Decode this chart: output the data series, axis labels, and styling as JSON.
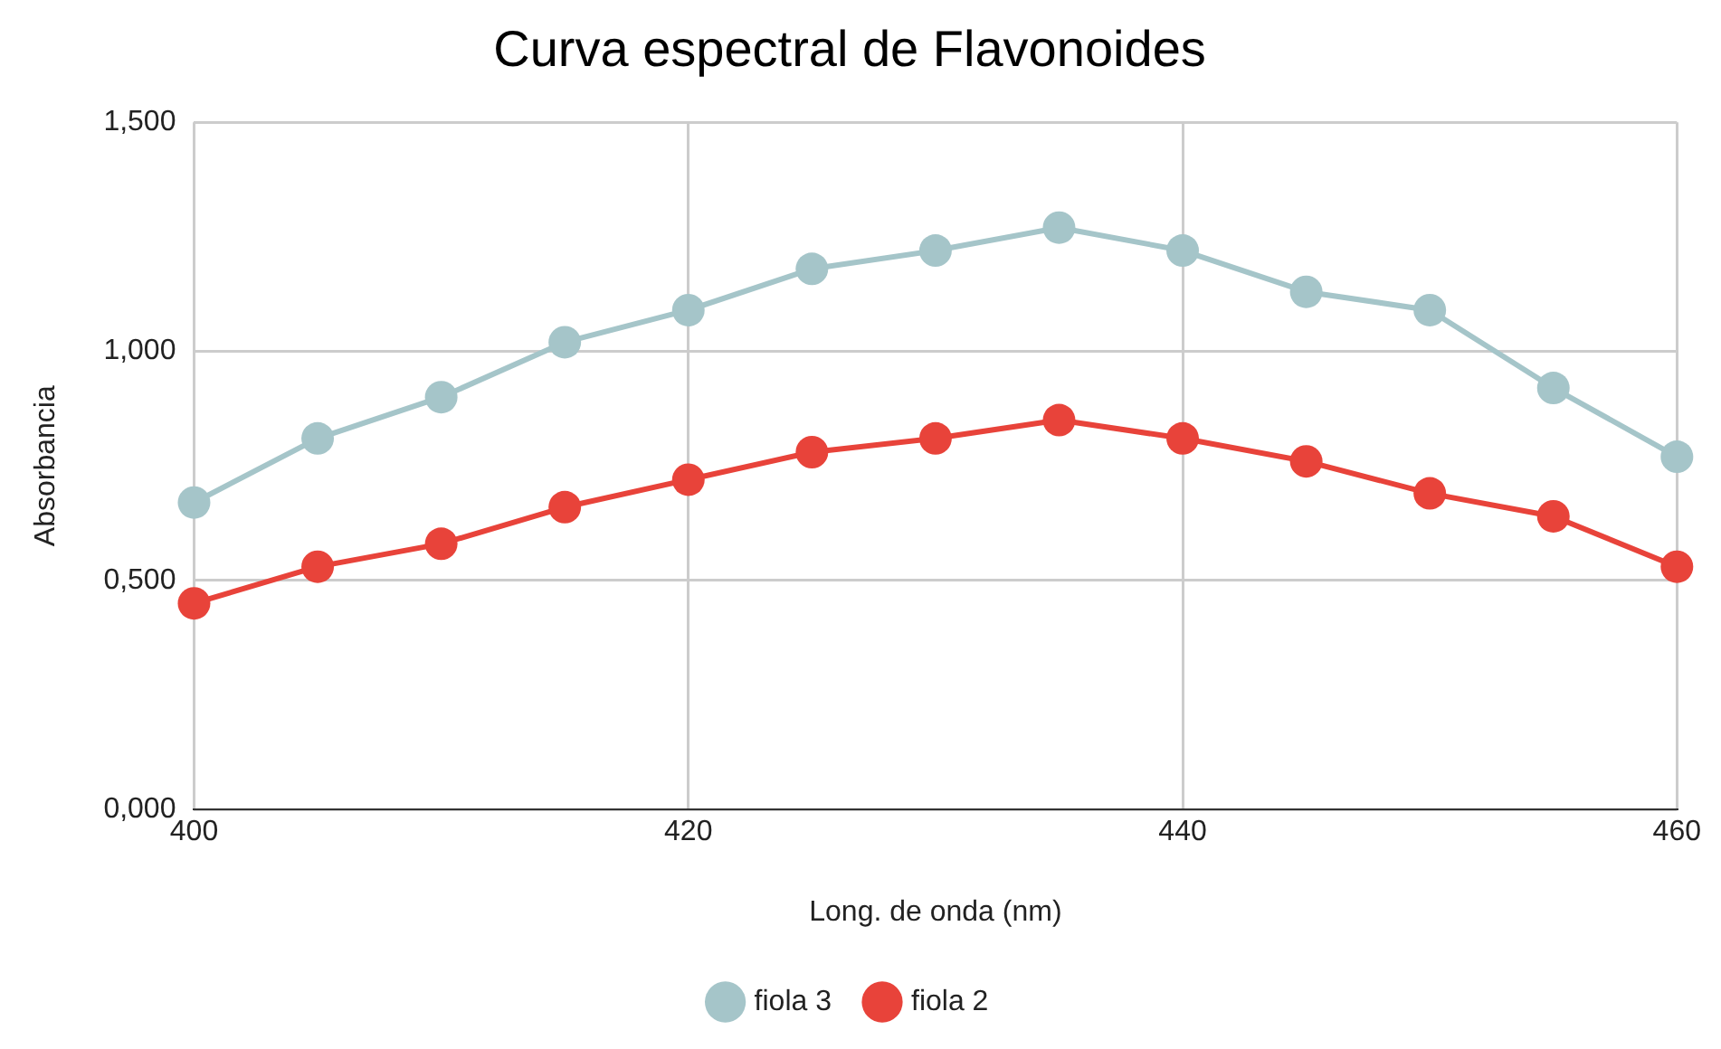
{
  "chart_data": {
    "type": "line",
    "title": "Curva espectral de Flavonoides",
    "xlabel": "Long. de onda (nm)",
    "ylabel": "Absorbancia",
    "x": [
      400,
      405,
      410,
      415,
      420,
      425,
      430,
      435,
      440,
      445,
      450,
      455,
      460
    ],
    "series": [
      {
        "name": "fiola 3",
        "color": "#a5c5c9",
        "values": [
          0.67,
          0.81,
          0.9,
          1.02,
          1.09,
          1.18,
          1.22,
          1.27,
          1.22,
          1.13,
          1.09,
          0.92,
          0.77
        ]
      },
      {
        "name": "fiola 2",
        "color": "#e8433a",
        "values": [
          0.45,
          0.53,
          0.58,
          0.66,
          0.72,
          0.78,
          0.81,
          0.85,
          0.81,
          0.76,
          0.69,
          0.64,
          0.53
        ]
      }
    ],
    "xlim": [
      400,
      460
    ],
    "xticks": [
      400,
      420,
      440,
      460
    ],
    "ylim": [
      0,
      1.5
    ],
    "yticks": [
      {
        "value": 0,
        "label": "0,000"
      },
      {
        "value": 0.5,
        "label": "0,500"
      },
      {
        "value": 1,
        "label": "1,000"
      },
      {
        "value": 1.5,
        "label": "1,500"
      }
    ],
    "grid": true,
    "legend": "bottom",
    "marker": "circle",
    "line_style": "solid"
  }
}
